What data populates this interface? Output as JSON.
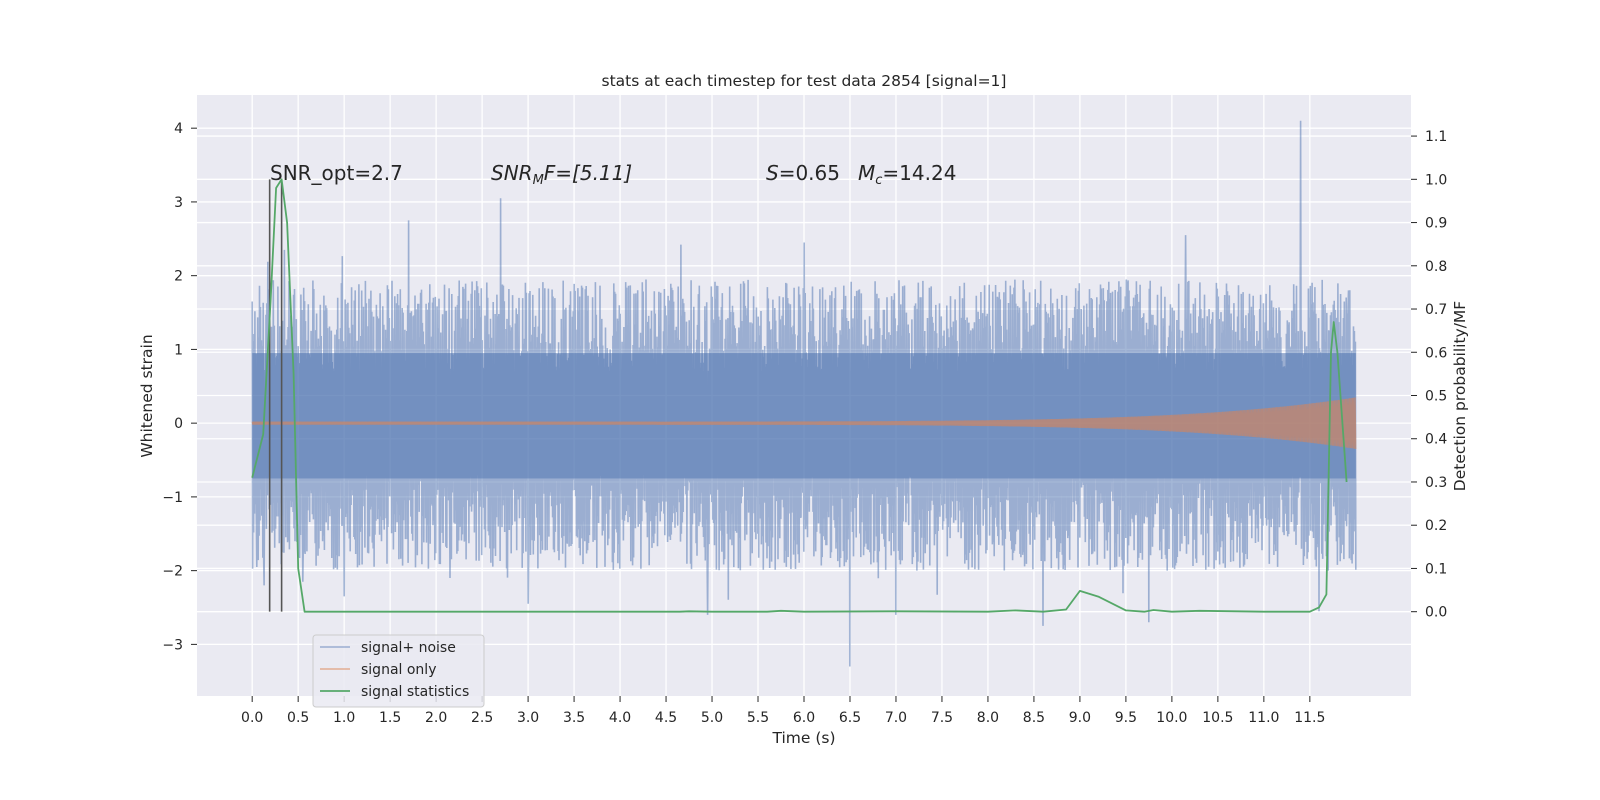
{
  "chart_data": {
    "type": "line",
    "title": "stats at each timestep for test data 2854 [signal=1]",
    "xlabel": "Time (s)",
    "ylabel_left": "Whitened strain",
    "ylabel_right": "Detection probability/MF",
    "xlim": [
      -0.6,
      12.6
    ],
    "ylim_left": [
      -3.7,
      4.45
    ],
    "ylim_right": [
      -0.195,
      1.195
    ],
    "x_ticks": [
      "0.0",
      "0.5",
      "1.0",
      "1.5",
      "2.0",
      "2.5",
      "3.0",
      "3.5",
      "4.0",
      "4.5",
      "5.0",
      "5.5",
      "6.0",
      "6.5",
      "7.0",
      "7.5",
      "8.0",
      "8.5",
      "9.0",
      "9.5",
      "10.0",
      "10.5",
      "11.0",
      "11.5"
    ],
    "y_ticks_left": [
      "−3",
      "−2",
      "−1",
      "0",
      "1",
      "2",
      "3",
      "4"
    ],
    "y_ticks_right": [
      "0.0",
      "0.1",
      "0.2",
      "0.3",
      "0.4",
      "0.5",
      "0.6",
      "0.7",
      "0.8",
      "0.9",
      "1.0",
      "1.1"
    ],
    "grid": true,
    "legend_position": "lower-left",
    "colors": {
      "noise": "#4c72b0",
      "signal": "#dd8452",
      "stats": "#55a868",
      "marker": "#555555",
      "background": "#eaeaf2"
    },
    "annotations": {
      "snr_opt": "SNR_opt=2.7",
      "snr_mf_main": "SNR",
      "snr_mf_sub": "M",
      "snr_mf_rest": "F=[5.11]",
      "s_label": "S",
      "s_value": "=0.65",
      "mc_label": "M",
      "mc_sub": "c",
      "mc_value": "=14.24"
    },
    "vertical_markers_x": [
      0.19,
      0.32
    ],
    "series": [
      {
        "name": "signal+ noise",
        "kind": "noise",
        "x_range": [
          0.0,
          12.0
        ],
        "band": [
          -0.75,
          0.95
        ],
        "extremes": [
          {
            "x": 0.0,
            "y": 1.65
          },
          {
            "x": 0.05,
            "y": -1.95
          },
          {
            "x": 0.13,
            "y": -2.2
          },
          {
            "x": 0.35,
            "y": 2.35
          },
          {
            "x": 0.55,
            "y": -2.15
          },
          {
            "x": 1.0,
            "y": -2.35
          },
          {
            "x": 1.7,
            "y": 2.75
          },
          {
            "x": 2.7,
            "y": 3.05
          },
          {
            "x": 2.15,
            "y": -2.1
          },
          {
            "x": 3.0,
            "y": -2.45
          },
          {
            "x": 4.95,
            "y": -2.6
          },
          {
            "x": 6.0,
            "y": 2.45
          },
          {
            "x": 6.5,
            "y": -3.3
          },
          {
            "x": 7.0,
            "y": -2.6
          },
          {
            "x": 8.6,
            "y": -2.75
          },
          {
            "x": 9.75,
            "y": -2.7
          },
          {
            "x": 10.15,
            "y": 2.55
          },
          {
            "x": 11.4,
            "y": 4.1
          },
          {
            "x": 11.6,
            "y": -2.55
          },
          {
            "x": 11.92,
            "y": 1.8
          }
        ]
      },
      {
        "name": "signal only",
        "kind": "chirp",
        "x_range": [
          0.0,
          12.0
        ],
        "amplitude_start": 0.02,
        "amplitude_end": 0.35
      },
      {
        "name": "signal statistics",
        "kind": "stats",
        "points": [
          [
            0.0,
            0.31
          ],
          [
            0.12,
            0.41
          ],
          [
            0.2,
            0.72
          ],
          [
            0.26,
            0.98
          ],
          [
            0.32,
            1.0
          ],
          [
            0.38,
            0.9
          ],
          [
            0.45,
            0.55
          ],
          [
            0.5,
            0.1
          ],
          [
            0.57,
            0.0
          ],
          [
            1.0,
            0.0
          ],
          [
            2.0,
            0.0
          ],
          [
            3.0,
            0.0
          ],
          [
            4.0,
            0.0
          ],
          [
            4.65,
            0.0
          ],
          [
            4.75,
            0.001
          ],
          [
            5.0,
            0.0
          ],
          [
            5.6,
            0.0
          ],
          [
            5.75,
            0.002
          ],
          [
            6.0,
            0.0
          ],
          [
            7.0,
            0.001
          ],
          [
            8.0,
            0.0
          ],
          [
            8.3,
            0.003
          ],
          [
            8.6,
            0.0
          ],
          [
            8.85,
            0.005
          ],
          [
            9.0,
            0.048
          ],
          [
            9.2,
            0.035
          ],
          [
            9.5,
            0.003
          ],
          [
            9.7,
            0.0
          ],
          [
            9.8,
            0.004
          ],
          [
            10.0,
            0.0
          ],
          [
            10.3,
            0.002
          ],
          [
            11.0,
            0.0
          ],
          [
            11.5,
            0.0
          ],
          [
            11.6,
            0.01
          ],
          [
            11.68,
            0.04
          ],
          [
            11.73,
            0.6
          ],
          [
            11.76,
            0.67
          ],
          [
            11.8,
            0.6
          ],
          [
            11.9,
            0.3
          ]
        ]
      }
    ]
  }
}
